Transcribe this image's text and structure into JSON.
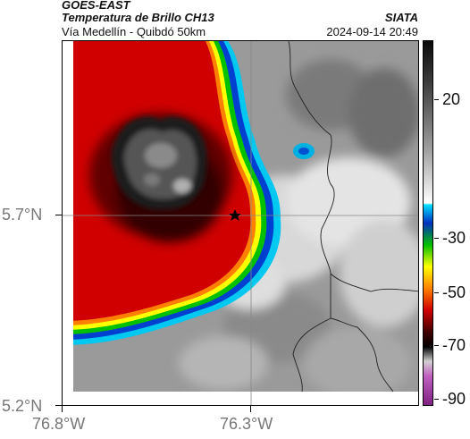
{
  "header": {
    "line1": "GOES-EAST",
    "line2": "Temperatura de Brillo CH13",
    "line3": "Vía Medellín - Quibdó 50km",
    "organization": "SIATA",
    "timestamp": "2024-09-14 20:49"
  },
  "axes": {
    "lat_labels": [
      {
        "text": "5.7°N",
        "value": 5.7
      },
      {
        "text": "5.2°N",
        "value": 5.2
      }
    ],
    "lon_labels": [
      {
        "text": "76.8°W",
        "value": -76.8
      },
      {
        "text": "76.3°W",
        "value": -76.3
      }
    ]
  },
  "colorbar": {
    "labels": [
      {
        "text": "20",
        "value": 20
      },
      {
        "text": "-30",
        "value": -30
      },
      {
        "text": "-50",
        "value": -50
      },
      {
        "text": "-70",
        "value": -70
      },
      {
        "text": "-90",
        "value": -90
      }
    ]
  },
  "colors": {
    "cold_core": "#3a3a3a",
    "red": "#c80000",
    "orange": "#ff7f00",
    "yellow": "#ffff00",
    "green": "#00c000",
    "blue": "#0030c0",
    "cyan": "#00b0e0",
    "warm_gray": "#bdbdbd"
  },
  "map": {
    "marker_icon": "star-icon"
  }
}
